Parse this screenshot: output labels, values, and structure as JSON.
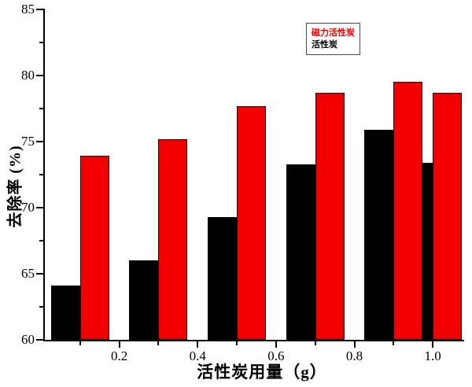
{
  "figure": {
    "background": "#ffffff",
    "text_color": "#000000"
  },
  "chart_data": {
    "type": "bar",
    "title": "",
    "xlabel": "活性炭用量（g）",
    "ylabel": "去除率 (%)",
    "categories": [
      0.1,
      0.3,
      0.5,
      0.7,
      0.9,
      1.0
    ],
    "series": [
      {
        "name": "活性炭",
        "color": "#000000",
        "values": [
          64.1,
          66.0,
          69.3,
          73.3,
          75.9,
          73.4
        ]
      },
      {
        "name": "磁力活性炭",
        "color": "#f20000",
        "values": [
          73.9,
          75.2,
          77.7,
          78.7,
          79.5,
          78.7
        ]
      }
    ],
    "legend": {
      "position": "top-center",
      "entries": [
        {
          "label": "磁力活性炭",
          "color": "#f20000"
        },
        {
          "label": "活性炭",
          "color": "#000000"
        }
      ]
    },
    "xlim": [
      0.01,
      1.08
    ],
    "ylim": [
      60,
      85
    ],
    "x_major_ticks": [
      "0.2",
      "0.4",
      "0.6",
      "0.8",
      "1.0"
    ],
    "x_minor_ticks": [
      0.1,
      0.3,
      0.5,
      0.7,
      0.9
    ],
    "y_major_ticks": [
      60,
      65,
      70,
      75,
      80,
      85
    ],
    "y_minor_ticks": [
      62.5,
      67.5,
      72.5,
      77.5,
      82.5
    ],
    "grid": false,
    "bar_outline_color": "#120000"
  }
}
